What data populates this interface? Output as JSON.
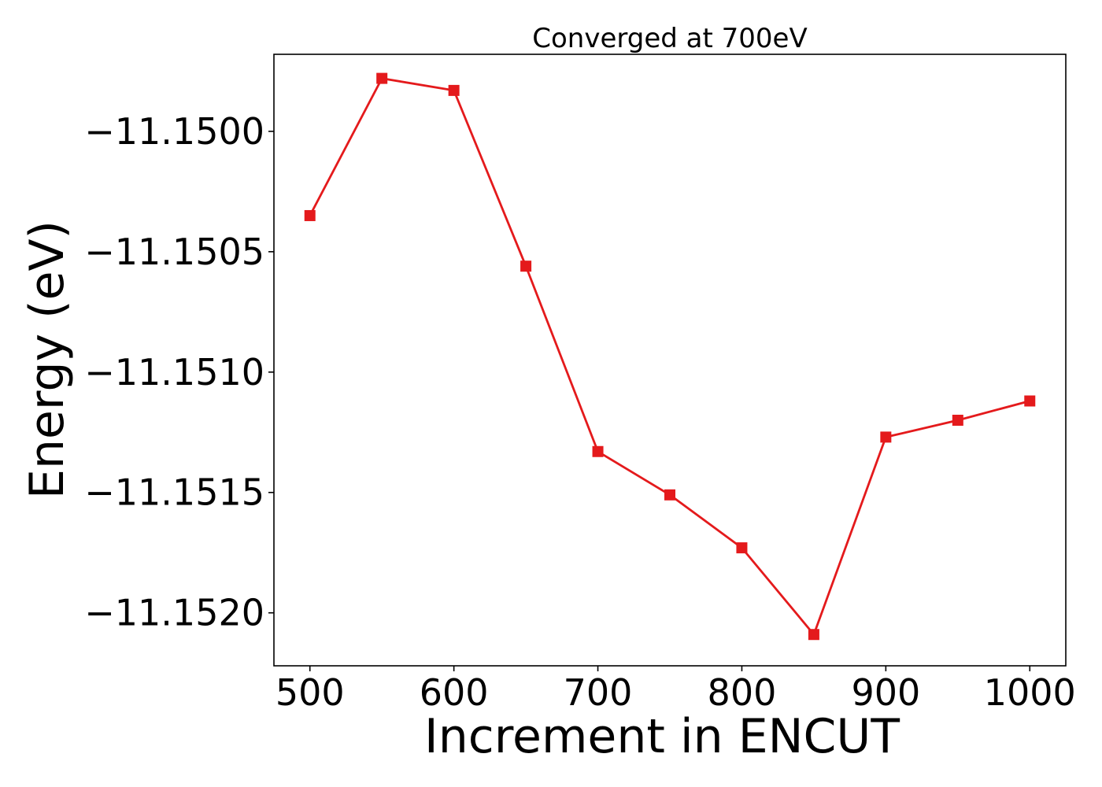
{
  "chart_data": {
    "type": "line",
    "title": "Converged at 700eV",
    "xlabel": "Increment in ENCUT",
    "ylabel": "Energy (eV)",
    "x": [
      500,
      550,
      600,
      650,
      700,
      750,
      800,
      850,
      900,
      950,
      1000
    ],
    "series": [
      {
        "values": [
          -11.15035,
          -11.14978,
          -11.14983,
          -11.15056,
          -11.15133,
          -11.15151,
          -11.15173,
          -11.15209,
          -11.15127,
          -11.1512,
          -11.15112
        ],
        "color": "#e41a1c",
        "marker": "square"
      }
    ],
    "xlim": [
      475,
      1025
    ],
    "ylim": [
      -11.15222,
      -11.14968
    ],
    "xticks": [
      500,
      600,
      700,
      800,
      900,
      1000
    ],
    "xtick_labels": [
      "500",
      "600",
      "700",
      "800",
      "900",
      "1000"
    ],
    "yticks": [
      -11.15,
      -11.1505,
      -11.151,
      -11.1515,
      -11.152
    ],
    "ytick_labels": [
      "−11.1500",
      "−11.1505",
      "−11.1510",
      "−11.1515",
      "−11.1520"
    ],
    "grid": false,
    "legend": false
  }
}
